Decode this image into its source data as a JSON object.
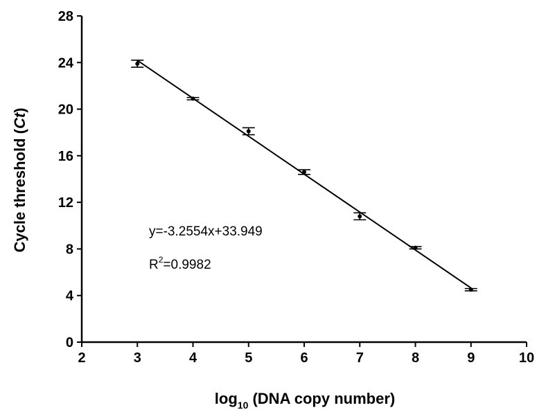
{
  "chart_data": {
    "type": "scatter",
    "xlabel_main": "log",
    "xlabel_sub": "10",
    "xlabel_rest": " (DNA copy number)",
    "ylabel_main": "Cycle threshold (",
    "ylabel_italic": "Ct",
    "ylabel_end": ")",
    "xlim": [
      2,
      10
    ],
    "ylim": [
      0,
      28
    ],
    "xticks": [
      2,
      3,
      4,
      5,
      6,
      7,
      8,
      9,
      10
    ],
    "yticks": [
      0,
      4,
      8,
      12,
      16,
      20,
      24,
      28
    ],
    "grid": false,
    "series": [
      {
        "x": [
          3,
          4,
          5,
          6,
          7,
          8,
          9
        ],
        "y": [
          23.9,
          20.9,
          18.1,
          14.6,
          10.8,
          8.1,
          4.5
        ],
        "error": [
          0.3,
          0.1,
          0.3,
          0.2,
          0.3,
          0.1,
          0.1
        ]
      }
    ],
    "fit": {
      "slope": -3.2554,
      "intercept": 33.949,
      "x_range": [
        3,
        9
      ]
    },
    "annotations": {
      "equation": "y=-3.2554x+33.949",
      "r2_prefix": "R",
      "r2_sup": "2",
      "r2_value": "=0.9982"
    }
  }
}
